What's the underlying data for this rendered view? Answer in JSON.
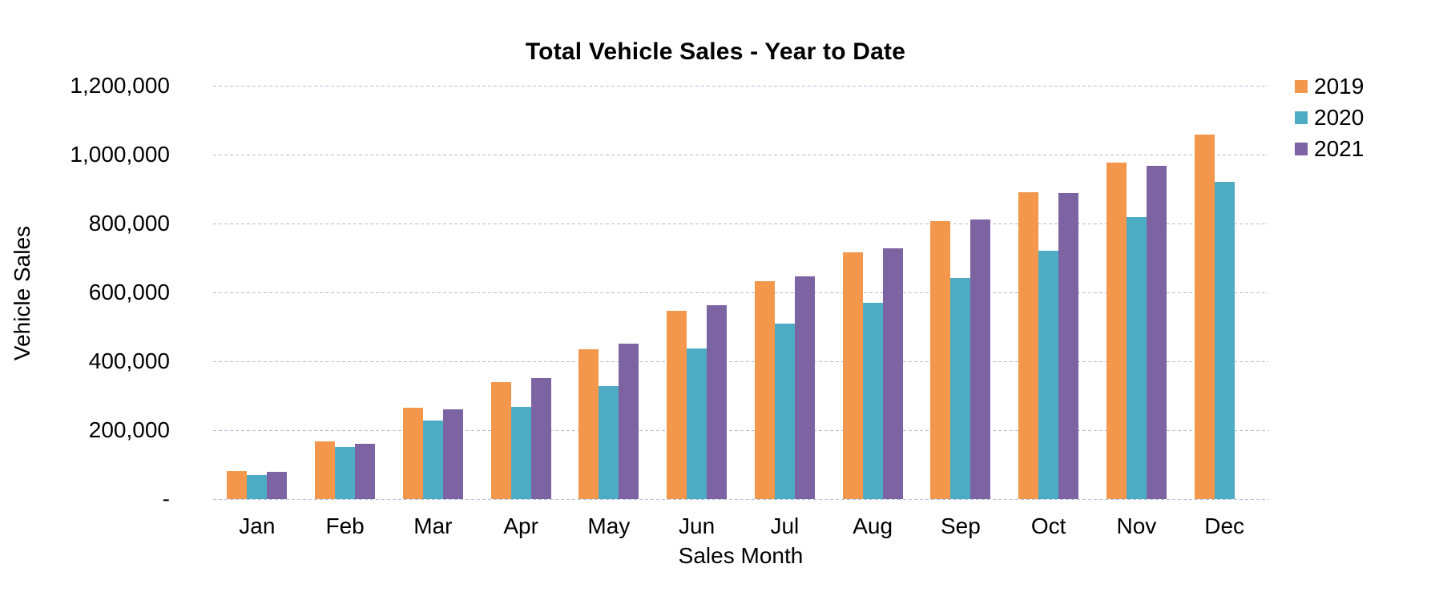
{
  "title": "Total Vehicle Sales - Year to Date",
  "colors": {
    "background": "#ffffff",
    "text": "#000000",
    "gridline": "#aebfd8",
    "series_2019": "#F2974C",
    "series_2020": "#4EABC4",
    "series_2021": "#7C63A2"
  },
  "chart_data": {
    "type": "bar",
    "title": "Total Vehicle Sales - Year to Date",
    "xlabel": "Sales Month",
    "ylabel": "Vehicle Sales",
    "categories": [
      "Jan",
      "Feb",
      "Mar",
      "Apr",
      "May",
      "Jun",
      "Jul",
      "Aug",
      "Sep",
      "Oct",
      "Nov",
      "Dec"
    ],
    "series": [
      {
        "name": "2019",
        "color": "#F2974C",
        "values": [
          82000,
          168000,
          265000,
          340000,
          434000,
          547000,
          632000,
          717000,
          808000,
          891000,
          976000,
          1059000
        ]
      },
      {
        "name": "2020",
        "color": "#4EABC4",
        "values": [
          70000,
          151000,
          229000,
          268000,
          327000,
          437000,
          509000,
          570000,
          643000,
          722000,
          819000,
          921000
        ]
      },
      {
        "name": "2021",
        "color": "#7C63A2",
        "values": [
          79000,
          161000,
          260000,
          352000,
          452000,
          562000,
          647000,
          727000,
          812000,
          888000,
          968000,
          null
        ]
      }
    ],
    "ylim": [
      0,
      1200000
    ],
    "y_ticks": [
      {
        "value": 1200000,
        "label": "1,200,000"
      },
      {
        "value": 1000000,
        "label": "1,000,000"
      },
      {
        "value": 800000,
        "label": "800,000"
      },
      {
        "value": 600000,
        "label": "600,000"
      },
      {
        "value": 400000,
        "label": "400,000"
      },
      {
        "value": 200000,
        "label": "200,000"
      },
      {
        "value": 0,
        "label": "-"
      }
    ],
    "grid": "horizontal-dashed",
    "legend_position": "top-right",
    "legend_entries": [
      "2019",
      "2020",
      "2021"
    ]
  }
}
